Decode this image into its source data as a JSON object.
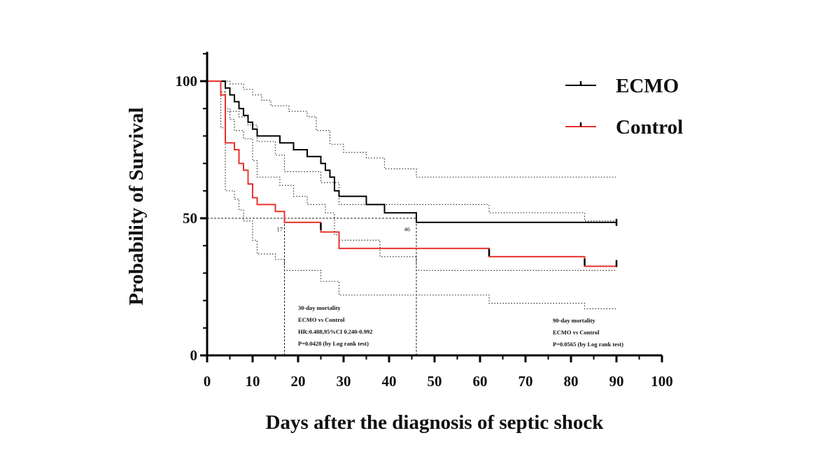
{
  "chart_data": {
    "type": "line",
    "subtype": "kaplan-meier",
    "title": "",
    "xlabel": "Days after the diagnosis of septic shock",
    "ylabel": "Probability of Survival",
    "xlim": [
      0,
      100
    ],
    "ylim": [
      0,
      110
    ],
    "xticks": [
      0,
      10,
      20,
      30,
      40,
      50,
      60,
      70,
      80,
      90,
      100
    ],
    "xtick_labels": [
      "0",
      "10",
      "20",
      "30",
      "40",
      "50",
      "60",
      "70",
      "80",
      "90",
      "100"
    ],
    "yticks": [
      0,
      50,
      100
    ],
    "ytick_labels": [
      "0",
      "50",
      "100"
    ],
    "legend_position": "top-right",
    "series": [
      {
        "name": "ECMO",
        "color": "#000000",
        "steps": [
          [
            0,
            100
          ],
          [
            4,
            100
          ],
          [
            4,
            97.5
          ],
          [
            5,
            97.5
          ],
          [
            5,
            95
          ],
          [
            6,
            95
          ],
          [
            6,
            92.5
          ],
          [
            7,
            92.5
          ],
          [
            7,
            90
          ],
          [
            8,
            90
          ],
          [
            8,
            87.5
          ],
          [
            9,
            87.5
          ],
          [
            9,
            85
          ],
          [
            10,
            85
          ],
          [
            10,
            82.5
          ],
          [
            11,
            82.5
          ],
          [
            11,
            80
          ],
          [
            16,
            80
          ],
          [
            16,
            77.5
          ],
          [
            19,
            77.5
          ],
          [
            19,
            75
          ],
          [
            22,
            75
          ],
          [
            22,
            72.5
          ],
          [
            25,
            72.5
          ],
          [
            25,
            70
          ],
          [
            26,
            70
          ],
          [
            26,
            67.5
          ],
          [
            27,
            67.5
          ],
          [
            27,
            65
          ],
          [
            28,
            65
          ],
          [
            28,
            60
          ],
          [
            29,
            60
          ],
          [
            29,
            58
          ],
          [
            35,
            58
          ],
          [
            35,
            55
          ],
          [
            39,
            55
          ],
          [
            39,
            52
          ],
          [
            46,
            52
          ],
          [
            46,
            48.5
          ],
          [
            90,
            48.5
          ]
        ],
        "censor": [
          [
            90,
            48.5
          ]
        ]
      },
      {
        "name": "Control",
        "color": "#e8322d",
        "steps": [
          [
            0,
            100
          ],
          [
            3,
            100
          ],
          [
            3,
            95
          ],
          [
            4,
            95
          ],
          [
            4,
            77.5
          ],
          [
            6,
            77.5
          ],
          [
            6,
            75
          ],
          [
            7,
            75
          ],
          [
            7,
            70
          ],
          [
            8,
            70
          ],
          [
            8,
            67.5
          ],
          [
            9,
            67.5
          ],
          [
            9,
            62.5
          ],
          [
            10,
            62.5
          ],
          [
            10,
            57.5
          ],
          [
            11,
            57.5
          ],
          [
            11,
            55
          ],
          [
            15,
            55
          ],
          [
            15,
            52.5
          ],
          [
            17,
            52.5
          ],
          [
            17,
            48.5
          ],
          [
            25,
            48.5
          ],
          [
            25,
            45
          ],
          [
            29,
            45
          ],
          [
            29,
            39
          ],
          [
            62,
            39
          ],
          [
            62,
            36
          ],
          [
            83,
            36
          ],
          [
            83,
            32.5
          ],
          [
            90,
            32.5
          ]
        ],
        "censor": [
          [
            25,
            47
          ],
          [
            62,
            37.5
          ],
          [
            83,
            34
          ],
          [
            90,
            33.5
          ]
        ]
      }
    ],
    "confidence_bands": [
      {
        "series": "ECMO",
        "bound": "upper",
        "steps": [
          [
            0,
            100
          ],
          [
            5,
            100
          ],
          [
            5,
            99
          ],
          [
            8,
            99
          ],
          [
            8,
            97
          ],
          [
            10,
            97
          ],
          [
            10,
            95
          ],
          [
            12,
            95
          ],
          [
            12,
            93
          ],
          [
            14,
            93
          ],
          [
            14,
            91
          ],
          [
            18,
            91
          ],
          [
            18,
            89
          ],
          [
            22,
            89
          ],
          [
            22,
            87
          ],
          [
            24,
            87
          ],
          [
            24,
            82
          ],
          [
            27,
            82
          ],
          [
            27,
            77
          ],
          [
            30,
            77
          ],
          [
            30,
            74
          ],
          [
            35,
            74
          ],
          [
            35,
            72
          ],
          [
            39,
            72
          ],
          [
            39,
            68
          ],
          [
            46,
            68
          ],
          [
            46,
            65
          ],
          [
            90,
            65
          ]
        ]
      },
      {
        "series": "ECMO",
        "bound": "lower",
        "steps": [
          [
            0,
            100
          ],
          [
            4,
            100
          ],
          [
            4,
            90
          ],
          [
            5,
            90
          ],
          [
            5,
            86
          ],
          [
            6,
            86
          ],
          [
            6,
            82
          ],
          [
            8,
            82
          ],
          [
            8,
            79
          ],
          [
            10,
            79
          ],
          [
            10,
            71
          ],
          [
            11,
            71
          ],
          [
            11,
            65
          ],
          [
            16,
            65
          ],
          [
            16,
            62
          ],
          [
            19,
            62
          ],
          [
            19,
            58
          ],
          [
            22,
            58
          ],
          [
            22,
            55
          ],
          [
            26,
            55
          ],
          [
            26,
            52
          ],
          [
            28,
            52
          ],
          [
            28,
            44
          ],
          [
            29,
            44
          ],
          [
            29,
            42
          ],
          [
            38,
            42
          ],
          [
            38,
            36
          ],
          [
            46,
            36
          ],
          [
            46,
            31
          ],
          [
            90,
            31
          ]
        ]
      },
      {
        "series": "Control",
        "bound": "upper",
        "steps": [
          [
            0,
            100
          ],
          [
            3,
            100
          ],
          [
            3,
            96
          ],
          [
            4,
            96
          ],
          [
            4,
            89
          ],
          [
            7,
            89
          ],
          [
            7,
            87
          ],
          [
            9,
            87
          ],
          [
            9,
            84
          ],
          [
            11,
            84
          ],
          [
            11,
            78
          ],
          [
            15,
            78
          ],
          [
            15,
            73
          ],
          [
            17,
            73
          ],
          [
            17,
            67
          ],
          [
            25,
            67
          ],
          [
            25,
            63
          ],
          [
            29,
            63
          ],
          [
            29,
            55
          ],
          [
            62,
            55
          ],
          [
            62,
            52
          ],
          [
            83,
            52
          ],
          [
            83,
            49
          ],
          [
            90,
            49
          ]
        ]
      },
      {
        "series": "Control",
        "bound": "lower",
        "steps": [
          [
            0,
            100
          ],
          [
            3,
            100
          ],
          [
            3,
            83
          ],
          [
            4,
            83
          ],
          [
            4,
            60
          ],
          [
            6,
            60
          ],
          [
            6,
            57
          ],
          [
            7,
            57
          ],
          [
            7,
            53
          ],
          [
            8,
            53
          ],
          [
            8,
            49
          ],
          [
            10,
            49
          ],
          [
            10,
            42
          ],
          [
            11,
            42
          ],
          [
            11,
            37
          ],
          [
            15,
            37
          ],
          [
            15,
            35
          ],
          [
            17,
            35
          ],
          [
            17,
            31
          ],
          [
            25,
            31
          ],
          [
            25,
            27
          ],
          [
            29,
            27
          ],
          [
            29,
            22
          ],
          [
            62,
            22
          ],
          [
            62,
            19
          ],
          [
            83,
            19
          ],
          [
            83,
            17
          ],
          [
            90,
            17
          ]
        ]
      }
    ],
    "reference_lines": [
      {
        "type": "horizontal",
        "y": 50,
        "x_from": 0,
        "x_to": 46
      },
      {
        "type": "vertical",
        "x": 17,
        "y_from": 0,
        "y_to": 50
      },
      {
        "type": "vertical",
        "x": 46,
        "y_from": 0,
        "y_to": 50
      }
    ],
    "median_labels": [
      {
        "text": "17",
        "x": 15,
        "y": 46
      },
      {
        "text": "46",
        "x": 43,
        "y": 46
      }
    ],
    "annotations": [
      {
        "name": "30-day",
        "lines": [
          "30-day mortality",
          "ECMO vs Control",
          "HR:0.488,95%CI 0.240-0.992",
          "P=0.0428 (by Log rank test)"
        ]
      },
      {
        "name": "90-day",
        "lines": [
          "90-day mortality",
          "ECMO vs Control",
          "P=0.0565 (by Log rank test)"
        ]
      }
    ]
  }
}
